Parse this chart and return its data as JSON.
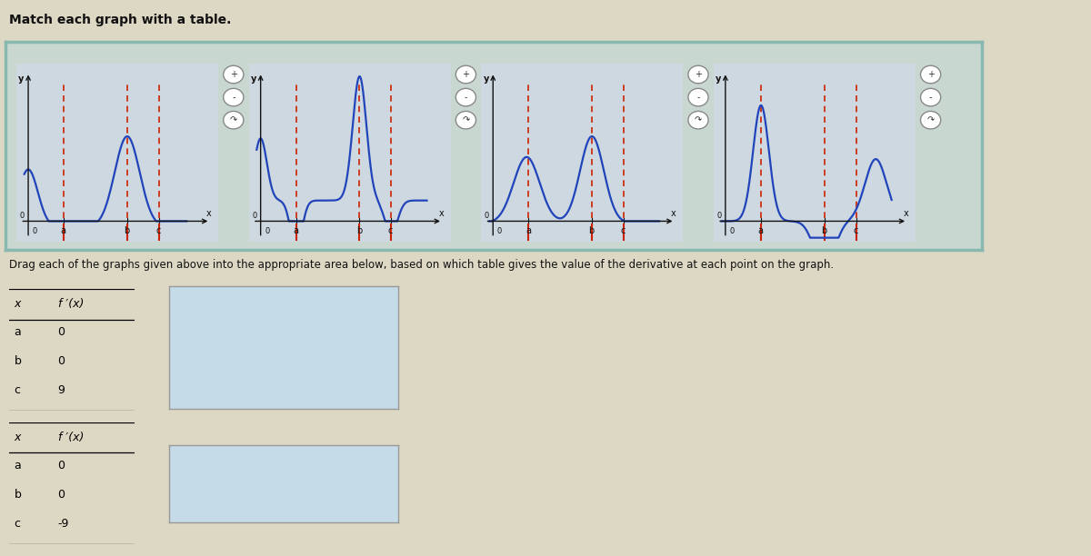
{
  "title": "Match each graph with a table.",
  "instruction": "Drag each of the graphs given above into the appropriate area below, based on which table gives the value of the derivative at each point on the graph.",
  "table1_header": [
    "x",
    "f ′(x)"
  ],
  "table1_rows": [
    [
      "a",
      "0"
    ],
    [
      "b",
      "0"
    ],
    [
      "c",
      "9"
    ]
  ],
  "table2_header": [
    "x",
    "f ′(x)"
  ],
  "table2_rows": [
    [
      "a",
      "0"
    ],
    [
      "b",
      "0"
    ],
    [
      "c",
      "-9"
    ]
  ],
  "drop_box_color": "#c5dce8",
  "graph_bg": "#cdd8e0",
  "outer_bg": "#ddd8c4",
  "panel_bg": "#c8d8d0",
  "panel_border": "#88b8b0",
  "curve_color": "#2244bb",
  "dash_color": "#cc2200",
  "axis_color": "#111111",
  "icon_bg": "#cccccc",
  "icon_circle": "#888888",
  "graph_types": [
    0,
    1,
    2,
    3
  ]
}
